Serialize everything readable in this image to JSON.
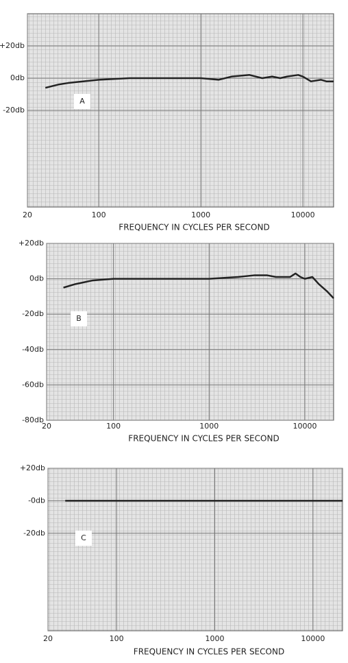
{
  "chart_data": [
    {
      "type": "line",
      "annotation": "A",
      "x_label": "FREQUENCY IN CYCLES PER SECOND",
      "log_x": true,
      "grid": true,
      "xlim": [
        20,
        20000
      ],
      "xticks": [
        20,
        100,
        1000,
        10000
      ],
      "ylim": [
        -80,
        40
      ],
      "yticks": [
        {
          "value": 20,
          "label": "+20db"
        },
        {
          "value": 0,
          "label": "0db"
        },
        {
          "value": -20,
          "label": "-20db"
        }
      ],
      "series": [
        {
          "color": "#222222",
          "x": [
            30,
            40,
            50,
            70,
            100,
            200,
            500,
            1000,
            1500,
            2000,
            3000,
            4000,
            5000,
            6000,
            7000,
            9000,
            10000,
            12000,
            15000,
            17000,
            20000
          ],
          "values": [
            -6,
            -4,
            -3,
            -2,
            -1,
            0,
            0,
            0,
            -1,
            1,
            2,
            0,
            1,
            0,
            1,
            2,
            1,
            -2,
            -1,
            -2,
            -2
          ]
        }
      ]
    },
    {
      "type": "line",
      "annotation": "B",
      "x_label": "FREQUENCY IN CYCLES PER SECOND",
      "log_x": true,
      "grid": true,
      "xlim": [
        20,
        20000
      ],
      "xticks": [
        20,
        100,
        1000,
        10000
      ],
      "ylim": [
        -80,
        20
      ],
      "yticks": [
        {
          "value": 20,
          "label": "+20db"
        },
        {
          "value": 0,
          "label": "0db"
        },
        {
          "value": -20,
          "label": "-20db"
        },
        {
          "value": -40,
          "label": "-40db"
        },
        {
          "value": -60,
          "label": "-60db"
        },
        {
          "value": -80,
          "label": "-80db"
        }
      ],
      "series": [
        {
          "color": "#222222",
          "x": [
            30,
            40,
            60,
            100,
            200,
            500,
            1000,
            2000,
            3000,
            4000,
            5000,
            6000,
            7000,
            8000,
            9000,
            10000,
            12000,
            14000,
            17000,
            20000
          ],
          "values": [
            -5,
            -3,
            -1,
            0,
            0,
            0,
            0,
            1,
            2,
            2,
            1,
            1,
            1,
            3,
            1,
            0,
            1,
            -3,
            -7,
            -11
          ]
        }
      ]
    },
    {
      "type": "line",
      "annotation": "C",
      "x_label": "FREQUENCY IN CYCLES PER SECOND",
      "log_x": true,
      "grid": true,
      "xlim": [
        20,
        20000
      ],
      "xticks": [
        20,
        100,
        1000,
        10000
      ],
      "ylim": [
        -80,
        20
      ],
      "yticks": [
        {
          "value": 20,
          "label": "+20db"
        },
        {
          "value": 0,
          "label": "-0db"
        },
        {
          "value": -20,
          "label": "-20db"
        }
      ],
      "series": [
        {
          "color": "#222222",
          "x": [
            30,
            100,
            1000,
            10000,
            20000
          ],
          "values": [
            0,
            0,
            0,
            0,
            0
          ]
        }
      ]
    }
  ]
}
